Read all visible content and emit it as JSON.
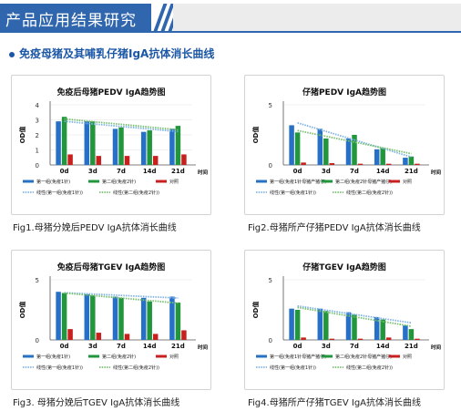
{
  "header": {
    "title": "产品应用结果研究"
  },
  "section": {
    "subtitle": "免疫母猪及其哺乳仔猪IgA抗体消长曲线"
  },
  "colors": {
    "group1": "#2670c8",
    "group2": "#22963c",
    "control": "#c8201e",
    "trend1": "#7fb2e5",
    "trend2": "#77c070"
  },
  "panels": [
    {
      "caption": "Fig1.母猪分娩后PEDV IgA抗体消长曲线"
    },
    {
      "caption": "Fig2.母猪所产仔猪PEDV IgA抗体消长曲线"
    },
    {
      "caption": "Fig3. 母猪分娩后TGEV IgA抗体消长曲线"
    },
    {
      "caption": "Fig4.母猪所产仔猪TGEV IgA抗体消长曲线"
    }
  ],
  "chart_data": [
    {
      "type": "bar",
      "title": "免疫后母猪PEDV IgA趋势图",
      "ylabel": "OD值",
      "xlabel_right": "时间",
      "categories": [
        "0d",
        "3d",
        "7d",
        "14d",
        "21d"
      ],
      "yticks": [
        0,
        1,
        2,
        3,
        4
      ],
      "ylim": [
        0,
        4
      ],
      "series": [
        {
          "name": "第一组(免疫1针)",
          "values": [
            2.9,
            2.9,
            2.4,
            2.2,
            2.4
          ]
        },
        {
          "name": "第二组(免疫2针)",
          "values": [
            3.2,
            2.9,
            2.5,
            2.3,
            2.6
          ]
        },
        {
          "name": "对照",
          "values": [
            0.7,
            0.6,
            0.6,
            0.6,
            0.7
          ]
        }
      ],
      "trendlines": [
        "线性(第一组(免疫1针))",
        "线性(第二组(免疫2针))"
      ],
      "legend": "bottom"
    },
    {
      "type": "bar",
      "title": "仔猪PEDV IgA趋势图",
      "ylabel": "OD值",
      "xlabel_right": "时间",
      "categories": [
        "0d",
        "3d",
        "7d",
        "14d",
        "21d"
      ],
      "yticks": [
        0,
        5
      ],
      "ylim": [
        0,
        5
      ],
      "series": [
        {
          "name": "第一组(免疫1针母猪产猪仔)",
          "values": [
            3.3,
            3.0,
            2.2,
            1.3,
            0.6
          ]
        },
        {
          "name": "第二组(免疫2针母猪产猪仔)",
          "values": [
            2.7,
            2.2,
            2.5,
            1.4,
            0.7
          ]
        },
        {
          "name": "对照",
          "values": [
            0.2,
            0.15,
            0.1,
            0.1,
            0.1
          ]
        }
      ],
      "trendlines": [
        "线性(第一组(免疫1针))",
        "线性(第二组(免疫2针))"
      ],
      "legend": "bottom"
    },
    {
      "type": "bar",
      "title": "免疫后母猪TGEV IgA趋势图",
      "ylabel": "OD值",
      "xlabel_right": "时间",
      "categories": [
        "0d",
        "3d",
        "7d",
        "14d",
        "21d"
      ],
      "yticks": [
        0,
        5
      ],
      "ylim": [
        0,
        5
      ],
      "series": [
        {
          "name": "第一组(免疫1针)",
          "values": [
            4.0,
            3.8,
            3.6,
            3.5,
            3.6
          ]
        },
        {
          "name": "第二组(免疫2针)",
          "values": [
            3.9,
            3.7,
            3.5,
            3.2,
            3.1
          ]
        },
        {
          "name": "对照",
          "values": [
            0.9,
            0.6,
            0.5,
            0.5,
            0.8
          ]
        }
      ],
      "trendlines": [
        "线性(第一组(免疫1针))",
        "线性(第二组(免疫2针))"
      ],
      "legend": "bottom"
    },
    {
      "type": "bar",
      "title": "仔猪TGEV IgA趋势图",
      "ylabel": "OD值",
      "xlabel_right": "时间",
      "categories": [
        "0d",
        "3d",
        "7d",
        "14d",
        "21d"
      ],
      "yticks": [
        0,
        5
      ],
      "ylim": [
        0,
        5
      ],
      "series": [
        {
          "name": "第一组(免疫1针母猪产猪仔)",
          "values": [
            2.6,
            2.6,
            2.3,
            1.9,
            1.2
          ]
        },
        {
          "name": "第二组(免疫2针母猪产猪仔)",
          "values": [
            2.5,
            2.4,
            2.1,
            1.7,
            0.9
          ]
        },
        {
          "name": "对照",
          "values": [
            0.2,
            0.1,
            0.1,
            0.2,
            0.1
          ]
        }
      ],
      "trendlines": [
        "线性(第一组(免疫1针))",
        "线性(第二组(免疫2针))"
      ],
      "legend": "bottom"
    }
  ]
}
